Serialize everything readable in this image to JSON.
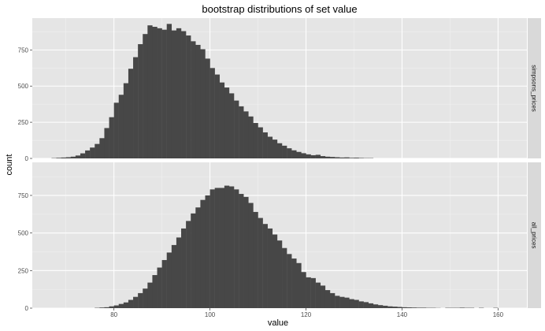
{
  "chart_data": {
    "type": "bar",
    "title": "bootstrap distributions of set value",
    "xlabel": "value",
    "ylabel": "count",
    "xlim": [
      63,
      166
    ],
    "ylim": [
      0,
      970
    ],
    "xticks": [
      80,
      100,
      120,
      140,
      160
    ],
    "yticks": [
      0,
      250,
      500,
      750
    ],
    "bin_width": 1,
    "grid": true,
    "colors": {
      "panel_bg": "#e5e5e5",
      "strip_bg": "#d9d9d9",
      "bar": "#474747",
      "grid_major": "#ffffff"
    },
    "panels": [
      {
        "strip": "simpsons_prices",
        "bins": [
          [
            67,
            2
          ],
          [
            68,
            4
          ],
          [
            69,
            6
          ],
          [
            70,
            8
          ],
          [
            71,
            12
          ],
          [
            72,
            20
          ],
          [
            73,
            35
          ],
          [
            74,
            55
          ],
          [
            75,
            75
          ],
          [
            76,
            100
          ],
          [
            77,
            140
          ],
          [
            78,
            210
          ],
          [
            79,
            285
          ],
          [
            80,
            385
          ],
          [
            81,
            440
          ],
          [
            82,
            520
          ],
          [
            83,
            620
          ],
          [
            84,
            700
          ],
          [
            85,
            790
          ],
          [
            86,
            860
          ],
          [
            87,
            920
          ],
          [
            88,
            910
          ],
          [
            89,
            900
          ],
          [
            90,
            890
          ],
          [
            91,
            930
          ],
          [
            92,
            885
          ],
          [
            93,
            900
          ],
          [
            94,
            880
          ],
          [
            95,
            850
          ],
          [
            96,
            810
          ],
          [
            97,
            785
          ],
          [
            98,
            755
          ],
          [
            99,
            690
          ],
          [
            100,
            625
          ],
          [
            101,
            580
          ],
          [
            102,
            525
          ],
          [
            103,
            490
          ],
          [
            104,
            450
          ],
          [
            105,
            400
          ],
          [
            106,
            360
          ],
          [
            107,
            325
          ],
          [
            108,
            290
          ],
          [
            109,
            245
          ],
          [
            110,
            215
          ],
          [
            111,
            180
          ],
          [
            112,
            150
          ],
          [
            113,
            130
          ],
          [
            114,
            105
          ],
          [
            115,
            88
          ],
          [
            116,
            70
          ],
          [
            117,
            56
          ],
          [
            118,
            45
          ],
          [
            119,
            36
          ],
          [
            120,
            28
          ],
          [
            121,
            22
          ],
          [
            122,
            25
          ],
          [
            123,
            16
          ],
          [
            124,
            12
          ],
          [
            125,
            10
          ],
          [
            126,
            8
          ],
          [
            127,
            6
          ],
          [
            128,
            7
          ],
          [
            129,
            4
          ],
          [
            130,
            5
          ],
          [
            131,
            3
          ],
          [
            132,
            2
          ],
          [
            133,
            2
          ]
        ]
      },
      {
        "strip": "all_prices",
        "bins": [
          [
            76,
            2
          ],
          [
            77,
            4
          ],
          [
            78,
            6
          ],
          [
            79,
            12
          ],
          [
            80,
            18
          ],
          [
            81,
            28
          ],
          [
            82,
            38
          ],
          [
            83,
            55
          ],
          [
            84,
            75
          ],
          [
            85,
            100
          ],
          [
            86,
            130
          ],
          [
            87,
            170
          ],
          [
            88,
            220
          ],
          [
            89,
            270
          ],
          [
            90,
            320
          ],
          [
            91,
            370
          ],
          [
            92,
            420
          ],
          [
            93,
            470
          ],
          [
            94,
            530
          ],
          [
            95,
            580
          ],
          [
            96,
            630
          ],
          [
            97,
            670
          ],
          [
            98,
            720
          ],
          [
            99,
            750
          ],
          [
            100,
            790
          ],
          [
            101,
            800
          ],
          [
            102,
            800
          ],
          [
            103,
            815
          ],
          [
            104,
            810
          ],
          [
            105,
            790
          ],
          [
            106,
            760
          ],
          [
            107,
            740
          ],
          [
            108,
            700
          ],
          [
            109,
            640
          ],
          [
            110,
            600
          ],
          [
            111,
            560
          ],
          [
            112,
            530
          ],
          [
            113,
            490
          ],
          [
            114,
            450
          ],
          [
            115,
            400
          ],
          [
            116,
            360
          ],
          [
            117,
            330
          ],
          [
            118,
            300
          ],
          [
            119,
            240
          ],
          [
            120,
            205
          ],
          [
            121,
            200
          ],
          [
            122,
            170
          ],
          [
            123,
            150
          ],
          [
            124,
            120
          ],
          [
            125,
            100
          ],
          [
            126,
            82
          ],
          [
            127,
            75
          ],
          [
            128,
            70
          ],
          [
            129,
            60
          ],
          [
            130,
            55
          ],
          [
            131,
            45
          ],
          [
            132,
            40
          ],
          [
            133,
            32
          ],
          [
            134,
            25
          ],
          [
            135,
            20
          ],
          [
            136,
            16
          ],
          [
            137,
            12
          ],
          [
            138,
            10
          ],
          [
            139,
            8
          ],
          [
            140,
            6
          ],
          [
            141,
            5
          ],
          [
            142,
            4
          ],
          [
            143,
            3
          ],
          [
            144,
            3
          ],
          [
            145,
            2
          ],
          [
            146,
            2
          ],
          [
            147,
            1
          ],
          [
            149,
            2
          ],
          [
            150,
            2
          ],
          [
            151,
            2
          ],
          [
            152,
            3
          ],
          [
            153,
            2
          ],
          [
            154,
            2
          ],
          [
            156,
            2
          ],
          [
            159,
            2
          ]
        ]
      }
    ]
  }
}
